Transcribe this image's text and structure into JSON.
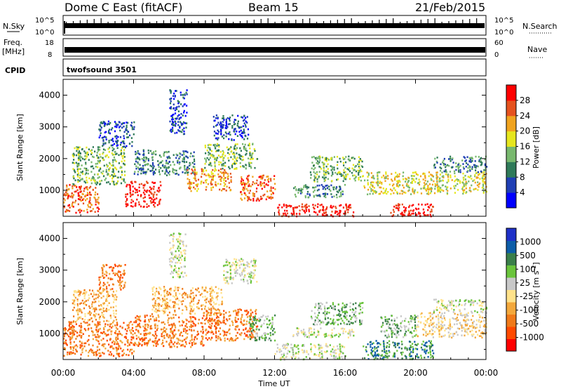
{
  "header": {
    "title": "Dome C East (fitACF)",
    "beam": "Beam 15",
    "date": "21/Feb/2015"
  },
  "strips": {
    "nsky": {
      "label": "N.Sky",
      "ticks": [
        "10^5",
        "10^0"
      ]
    },
    "nsearch": {
      "label": "N.Search",
      "ticks": [
        "10^5",
        "10^0"
      ]
    },
    "freq": {
      "label": "Freq.",
      "unit": "[MHz]",
      "ticks": [
        "18",
        "8"
      ]
    },
    "nave": {
      "label": "Nave",
      "ticks": [
        "60",
        "0"
      ]
    },
    "cpid": {
      "label": "CPID",
      "value": "twofsound 3501"
    }
  },
  "chart_data": [
    {
      "type": "heatmap",
      "name": "power",
      "ylabel": "Slant Range [km]",
      "xlabel": "Time UT",
      "x_ticks": [
        "00:00",
        "04:00",
        "08:00",
        "12:00",
        "16:00",
        "20:00",
        "00:00"
      ],
      "xlim": [
        0,
        24
      ],
      "ylim": [
        180,
        4500
      ],
      "y_ticks": [
        1000,
        2000,
        3000,
        4000
      ],
      "colorbar": {
        "label": "Power [dB]",
        "ticks": [
          "28",
          "24",
          "20",
          "16",
          "12",
          "8",
          "4"
        ],
        "colors": [
          "#0000ff",
          "#1f3fb4",
          "#2f7a59",
          "#78b86e",
          "#e6e61e",
          "#f0a31e",
          "#e5521e",
          "#ff0000"
        ]
      },
      "regions": [
        {
          "t": [
            0.0,
            2.0
          ],
          "r": [
            300,
            1200
          ],
          "level": 6
        },
        {
          "t": [
            0.5,
            3.5
          ],
          "r": [
            1200,
            2400
          ],
          "level": 3
        },
        {
          "t": [
            2.0,
            4.0
          ],
          "r": [
            2400,
            3200
          ],
          "level": 1
        },
        {
          "t": [
            3.5,
            5.5
          ],
          "r": [
            500,
            1300
          ],
          "level": 7
        },
        {
          "t": [
            4.0,
            7.5
          ],
          "r": [
            1500,
            2300
          ],
          "level": 2
        },
        {
          "t": [
            6.0,
            7.0
          ],
          "r": [
            2800,
            4200
          ],
          "level": 1
        },
        {
          "t": [
            7.0,
            9.5
          ],
          "r": [
            1000,
            1700
          ],
          "level": 5
        },
        {
          "t": [
            8.0,
            11.0
          ],
          "r": [
            1700,
            2500
          ],
          "level": 3
        },
        {
          "t": [
            8.5,
            10.5
          ],
          "r": [
            2600,
            3400
          ],
          "level": 1
        },
        {
          "t": [
            10.0,
            12.0
          ],
          "r": [
            700,
            1500
          ],
          "level": 6
        },
        {
          "t": [
            12.0,
            16.5
          ],
          "r": [
            200,
            600
          ],
          "level": 7
        },
        {
          "t": [
            13.0,
            16.0
          ],
          "r": [
            800,
            1200
          ],
          "level": 2
        },
        {
          "t": [
            14.0,
            17.0
          ],
          "r": [
            1300,
            2100
          ],
          "level": 3
        },
        {
          "t": [
            17.0,
            20.0
          ],
          "r": [
            900,
            1600
          ],
          "level": 4
        },
        {
          "t": [
            18.5,
            21.0
          ],
          "r": [
            200,
            600
          ],
          "level": 7
        },
        {
          "t": [
            20.0,
            24.0
          ],
          "r": [
            900,
            1600
          ],
          "level": 4
        },
        {
          "t": [
            21.0,
            24.0
          ],
          "r": [
            1600,
            2100
          ],
          "level": 2
        }
      ]
    },
    {
      "type": "heatmap",
      "name": "velocity",
      "ylabel": "Slant Range [km]",
      "xlabel": "Time UT",
      "x_ticks": [
        "00:00",
        "04:00",
        "08:00",
        "12:00",
        "16:00",
        "20:00",
        "00:00"
      ],
      "xlim": [
        0,
        24
      ],
      "ylim": [
        180,
        4500
      ],
      "y_ticks": [
        1000,
        2000,
        3000,
        4000
      ],
      "colorbar": {
        "label": "Velocity [m s^-1]",
        "ticks": [
          "1000",
          "500",
          "100",
          "25",
          "-25",
          "-100",
          "-500",
          "-1000"
        ],
        "colors": [
          "#ff0000",
          "#ff4a00",
          "#f07a1a",
          "#f3a83c",
          "#ffe28a",
          "#c8c8c8",
          "#6ac43c",
          "#3a7f4a",
          "#0d5da8",
          "#1e30c8"
        ]
      },
      "regions": [
        {
          "t": [
            0.0,
            4.0
          ],
          "r": [
            300,
            1400
          ],
          "level": 2
        },
        {
          "t": [
            0.5,
            3.0
          ],
          "r": [
            1400,
            2400
          ],
          "level": 3
        },
        {
          "t": [
            2.0,
            3.5
          ],
          "r": [
            2400,
            3200
          ],
          "level": 2
        },
        {
          "t": [
            4.0,
            8.0
          ],
          "r": [
            600,
            1600
          ],
          "level": 2
        },
        {
          "t": [
            5.0,
            9.0
          ],
          "r": [
            1600,
            2500
          ],
          "level": 3
        },
        {
          "t": [
            6.0,
            7.0
          ],
          "r": [
            2800,
            4200
          ],
          "level": 5
        },
        {
          "t": [
            8.0,
            11.0
          ],
          "r": [
            800,
            1800
          ],
          "level": 2
        },
        {
          "t": [
            9.0,
            11.0
          ],
          "r": [
            2600,
            3400
          ],
          "level": 5
        },
        {
          "t": [
            10.5,
            12.0
          ],
          "r": [
            800,
            1600
          ],
          "level": 6
        },
        {
          "t": [
            12.0,
            16.0
          ],
          "r": [
            200,
            700
          ],
          "level": 5
        },
        {
          "t": [
            13.0,
            16.5
          ],
          "r": [
            900,
            1200
          ],
          "level": 5
        },
        {
          "t": [
            14.0,
            17.0
          ],
          "r": [
            1300,
            2000
          ],
          "level": 6
        },
        {
          "t": [
            17.0,
            21.0
          ],
          "r": [
            200,
            800
          ],
          "level": 7
        },
        {
          "t": [
            18.0,
            20.0
          ],
          "r": [
            900,
            1600
          ],
          "level": 6
        },
        {
          "t": [
            20.0,
            24.0
          ],
          "r": [
            900,
            1700
          ],
          "level": 4
        },
        {
          "t": [
            21.0,
            24.0
          ],
          "r": [
            1700,
            2100
          ],
          "level": 5
        }
      ]
    }
  ]
}
